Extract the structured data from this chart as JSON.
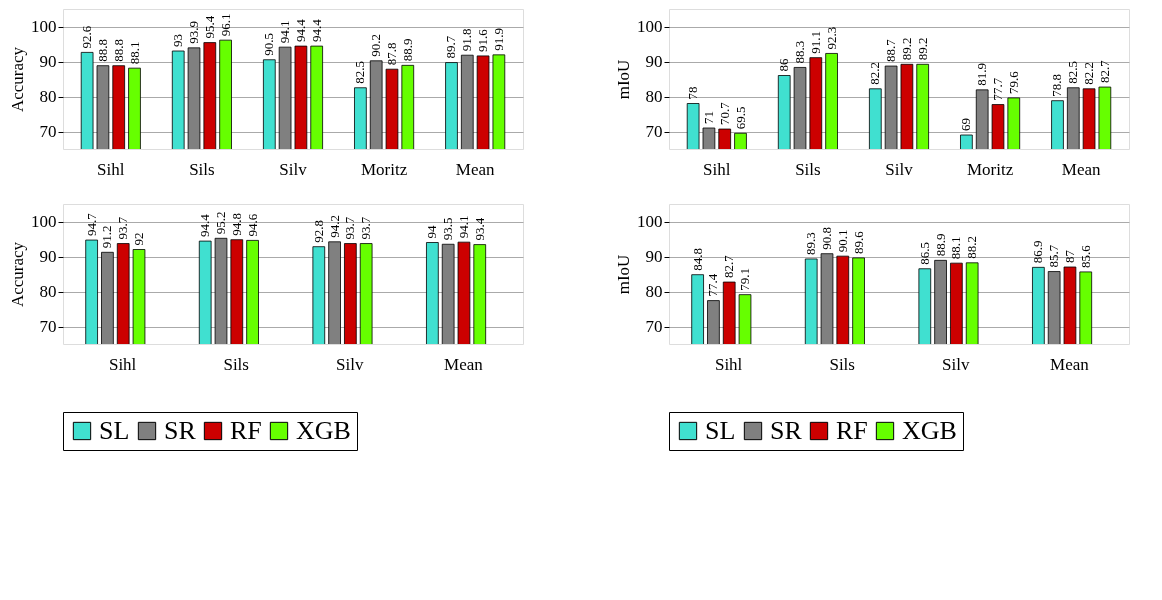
{
  "chart_data": [
    {
      "type": "bar",
      "ylabel": "Accuracy",
      "categories": [
        "Sihl",
        "Sils",
        "Silv",
        "Moritz",
        "Mean"
      ],
      "ylim": [
        65,
        105
      ],
      "yticks": [
        70,
        80,
        90,
        100
      ],
      "grid": "y",
      "data_labels": true,
      "legend": "bottom",
      "series": [
        {
          "name": "SL",
          "color": "#40e0d0",
          "values": [
            92.6,
            93,
            90.5,
            82.5,
            89.7
          ]
        },
        {
          "name": "SR",
          "color": "#808080",
          "values": [
            88.8,
            93.9,
            94.1,
            90.2,
            91.8
          ]
        },
        {
          "name": "RF",
          "color": "#cc0000",
          "values": [
            88.8,
            95.4,
            94.4,
            87.8,
            91.6
          ]
        },
        {
          "name": "XGB",
          "color": "#66ff00",
          "values": [
            88.1,
            96.1,
            94.4,
            88.9,
            91.9
          ]
        }
      ]
    },
    {
      "type": "bar",
      "ylabel": "mIoU",
      "categories": [
        "Sihl",
        "Sils",
        "Silv",
        "Moritz",
        "Mean"
      ],
      "ylim": [
        65,
        105
      ],
      "yticks": [
        70,
        80,
        90,
        100
      ],
      "grid": "y",
      "data_labels": true,
      "legend": "bottom",
      "series": [
        {
          "name": "SL",
          "color": "#40e0d0",
          "values": [
            78,
            86,
            82.2,
            69,
            78.8
          ]
        },
        {
          "name": "SR",
          "color": "#808080",
          "values": [
            71,
            88.3,
            88.7,
            81.9,
            82.5
          ]
        },
        {
          "name": "RF",
          "color": "#cc0000",
          "values": [
            70.7,
            91.1,
            89.2,
            77.7,
            82.2
          ]
        },
        {
          "name": "XGB",
          "color": "#66ff00",
          "values": [
            69.5,
            92.3,
            89.2,
            79.6,
            82.7
          ]
        }
      ]
    },
    {
      "type": "bar",
      "ylabel": "Accuracy",
      "categories": [
        "Sihl",
        "Sils",
        "Silv",
        "Mean"
      ],
      "ylim": [
        65,
        105
      ],
      "yticks": [
        70,
        80,
        90,
        100
      ],
      "grid": "y",
      "data_labels": true,
      "legend": "bottom",
      "series": [
        {
          "name": "SL",
          "color": "#40e0d0",
          "values": [
            94.7,
            94.4,
            92.8,
            94
          ]
        },
        {
          "name": "SR",
          "color": "#808080",
          "values": [
            91.2,
            95.2,
            94.2,
            93.5
          ]
        },
        {
          "name": "RF",
          "color": "#cc0000",
          "values": [
            93.7,
            94.8,
            93.7,
            94.1
          ]
        },
        {
          "name": "XGB",
          "color": "#66ff00",
          "values": [
            92,
            94.6,
            93.7,
            93.4
          ]
        }
      ]
    },
    {
      "type": "bar",
      "ylabel": "mIoU",
      "categories": [
        "Sihl",
        "Sils",
        "Silv",
        "Mean"
      ],
      "ylim": [
        65,
        105
      ],
      "yticks": [
        70,
        80,
        90,
        100
      ],
      "grid": "y",
      "data_labels": true,
      "legend": "bottom",
      "series": [
        {
          "name": "SL",
          "color": "#40e0d0",
          "values": [
            84.8,
            89.3,
            86.5,
            86.9
          ]
        },
        {
          "name": "SR",
          "color": "#808080",
          "values": [
            77.4,
            90.8,
            88.9,
            85.7
          ]
        },
        {
          "name": "RF",
          "color": "#cc0000",
          "values": [
            82.7,
            90.1,
            88.1,
            87
          ]
        },
        {
          "name": "XGB",
          "color": "#66ff00",
          "values": [
            79.1,
            89.6,
            88.2,
            85.6
          ]
        }
      ]
    }
  ]
}
